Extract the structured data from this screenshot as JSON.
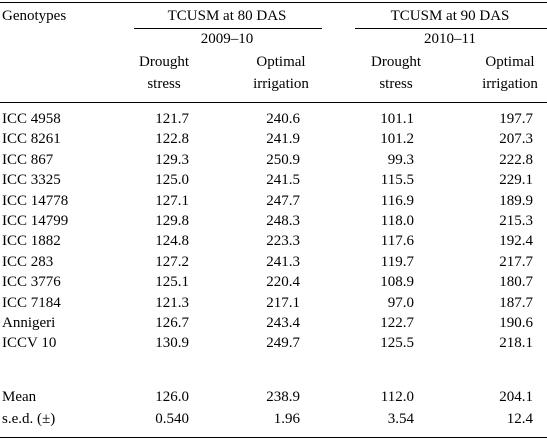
{
  "header": {
    "genotypes_label": "Genotypes",
    "group1_title": "TCUSM at 80 DAS",
    "group1_year": "2009–10",
    "group2_title": "TCUSM at 90 DAS",
    "group2_year": "2010–11",
    "col_drought_line1": "Drought",
    "col_drought_line2": "stress",
    "col_optimal_line1": "Optimal",
    "col_optimal_line2": "irrigation"
  },
  "rows": [
    {
      "genotype": "ICC 4958",
      "d80": "121.7",
      "o80": "240.6",
      "d90": "101.1",
      "o90": "197.7"
    },
    {
      "genotype": "ICC 8261",
      "d80": "122.8",
      "o80": "241.9",
      "d90": "101.2",
      "o90": "207.3"
    },
    {
      "genotype": "ICC 867",
      "d80": "129.3",
      "o80": "250.9",
      "d90": "99.3",
      "o90": "222.8"
    },
    {
      "genotype": "ICC 3325",
      "d80": "125.0",
      "o80": "241.5",
      "d90": "115.5",
      "o90": "229.1"
    },
    {
      "genotype": "ICC 14778",
      "d80": "127.1",
      "o80": "247.7",
      "d90": "116.9",
      "o90": "189.9"
    },
    {
      "genotype": "ICC 14799",
      "d80": "129.8",
      "o80": "248.3",
      "d90": "118.0",
      "o90": "215.3"
    },
    {
      "genotype": "ICC 1882",
      "d80": "124.8",
      "o80": "223.3",
      "d90": "117.6",
      "o90": "192.4"
    },
    {
      "genotype": "ICC 283",
      "d80": "127.2",
      "o80": "241.3",
      "d90": "119.7",
      "o90": "217.7"
    },
    {
      "genotype": "ICC 3776",
      "d80": "125.1",
      "o80": "220.4",
      "d90": "108.9",
      "o90": "180.7"
    },
    {
      "genotype": "ICC 7184",
      "d80": "121.3",
      "o80": "217.1",
      "d90": "97.0",
      "o90": "187.7"
    },
    {
      "genotype": "Annigeri",
      "d80": "126.7",
      "o80": "243.4",
      "d90": "122.7",
      "o90": "190.6"
    },
    {
      "genotype": "ICCV 10",
      "d80": "130.9",
      "o80": "249.7",
      "d90": "125.5",
      "o90": "218.1"
    }
  ],
  "summary": [
    {
      "genotype": "Mean",
      "d80": "126.0",
      "o80": "238.9",
      "d90": "112.0",
      "o90": "204.1"
    },
    {
      "genotype": "s.e.d. (±)",
      "d80": "0.540",
      "o80": "1.96",
      "d90": "3.54",
      "o90": "12.4"
    }
  ]
}
